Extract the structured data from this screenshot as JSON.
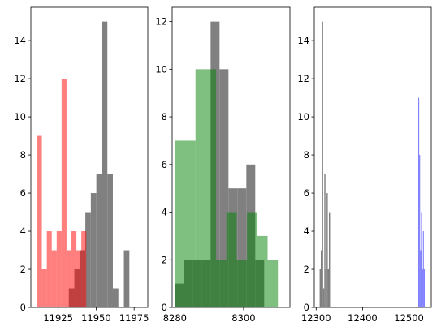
{
  "chart_data": [
    {
      "type": "histogram",
      "xlim": [
        11907,
        11984
      ],
      "ylim": [
        0,
        15.75
      ],
      "x_ticks": [
        11925,
        11950,
        11975
      ],
      "y_ticks": [
        0,
        2,
        4,
        6,
        8,
        10,
        12,
        14
      ],
      "series": [
        {
          "color": "#808080",
          "opacity": 1.0,
          "bins": [
            {
              "x0": 11932.0,
              "x1": 11935.63,
              "count": 1
            },
            {
              "x0": 11935.63,
              "x1": 11939.25,
              "count": 2
            },
            {
              "x0": 11939.25,
              "x1": 11942.88,
              "count": 3
            },
            {
              "x0": 11942.88,
              "x1": 11946.5,
              "count": 5
            },
            {
              "x0": 11946.5,
              "x1": 11950.13,
              "count": 6
            },
            {
              "x0": 11950.13,
              "x1": 11953.75,
              "count": 7
            },
            {
              "x0": 11953.75,
              "x1": 11957.38,
              "count": 15
            },
            {
              "x0": 11957.38,
              "x1": 11961.0,
              "count": 7
            },
            {
              "x0": 11961.0,
              "x1": 11964.63,
              "count": 1
            },
            {
              "x0": 11964.63,
              "x1": 11968.25,
              "count": 0
            },
            {
              "x0": 11968.25,
              "x1": 11971.88,
              "count": 3
            }
          ]
        },
        {
          "color": "#ff0000",
          "opacity": 0.5,
          "bins": [
            {
              "x0": 11911.0,
              "x1": 11914.25,
              "count": 9
            },
            {
              "x0": 11914.25,
              "x1": 11917.5,
              "count": 2
            },
            {
              "x0": 11917.5,
              "x1": 11920.75,
              "count": 4
            },
            {
              "x0": 11920.75,
              "x1": 11924.0,
              "count": 3
            },
            {
              "x0": 11924.0,
              "x1": 11927.25,
              "count": 4
            },
            {
              "x0": 11927.25,
              "x1": 11930.5,
              "count": 12
            },
            {
              "x0": 11930.5,
              "x1": 11933.75,
              "count": 3
            },
            {
              "x0": 11933.75,
              "x1": 11937.0,
              "count": 4
            },
            {
              "x0": 11937.0,
              "x1": 11940.25,
              "count": 3
            },
            {
              "x0": 11940.25,
              "x1": 11943.5,
              "count": 4
            }
          ]
        }
      ]
    },
    {
      "type": "histogram",
      "xlim": [
        8279.2,
        8313.5
      ],
      "ylim": [
        0,
        12.6
      ],
      "x_ticks": [
        8280,
        8300
      ],
      "y_ticks": [
        0,
        2,
        4,
        6,
        8,
        10,
        12
      ],
      "series": [
        {
          "color": "#808080",
          "opacity": 1.0,
          "bins": [
            {
              "x0": 8280.0,
              "x1": 8282.6,
              "count": 1
            },
            {
              "x0": 8282.6,
              "x1": 8285.2,
              "count": 2
            },
            {
              "x0": 8285.2,
              "x1": 8287.8,
              "count": 2
            },
            {
              "x0": 8287.8,
              "x1": 8290.4,
              "count": 2
            },
            {
              "x0": 8290.4,
              "x1": 8293.0,
              "count": 12
            },
            {
              "x0": 8293.0,
              "x1": 8295.6,
              "count": 10
            },
            {
              "x0": 8295.6,
              "x1": 8298.2,
              "count": 5
            },
            {
              "x0": 8298.2,
              "x1": 8300.8,
              "count": 5
            },
            {
              "x0": 8300.8,
              "x1": 8303.4,
              "count": 6
            },
            {
              "x0": 8303.4,
              "x1": 8306.0,
              "count": 2
            }
          ]
        },
        {
          "color": "#008000",
          "opacity": 0.5,
          "bins": [
            {
              "x0": 8280.0,
              "x1": 8283.0,
              "count": 7
            },
            {
              "x0": 8283.0,
              "x1": 8286.0,
              "count": 7
            },
            {
              "x0": 8286.0,
              "x1": 8289.0,
              "count": 10
            },
            {
              "x0": 8289.0,
              "x1": 8292.0,
              "count": 10
            },
            {
              "x0": 8292.0,
              "x1": 8295.0,
              "count": 2
            },
            {
              "x0": 8295.0,
              "x1": 8298.0,
              "count": 4
            },
            {
              "x0": 8298.0,
              "x1": 8301.0,
              "count": 2
            },
            {
              "x0": 8301.0,
              "x1": 8304.0,
              "count": 4
            },
            {
              "x0": 8304.0,
              "x1": 8307.0,
              "count": 3
            },
            {
              "x0": 8307.0,
              "x1": 8310.0,
              "count": 2
            }
          ]
        }
      ]
    },
    {
      "type": "histogram",
      "xlim": [
        12296,
        12548
      ],
      "ylim": [
        0,
        15.75
      ],
      "x_ticks": [
        12300,
        12400,
        12500
      ],
      "y_ticks": [
        0,
        2,
        4,
        6,
        8,
        10,
        12,
        14
      ],
      "series": [
        {
          "color": "#808080",
          "opacity": 1.0,
          "bins": [
            {
              "x0": 12307.5,
              "x1": 12310.0,
              "count": 2
            },
            {
              "x0": 12310.0,
              "x1": 12312.5,
              "count": 3
            },
            {
              "x0": 12312.5,
              "x1": 12315.0,
              "count": 15
            },
            {
              "x0": 12315.0,
              "x1": 12317.5,
              "count": 1
            },
            {
              "x0": 12317.5,
              "x1": 12320.0,
              "count": 7
            },
            {
              "x0": 12320.0,
              "x1": 12322.5,
              "count": 2
            },
            {
              "x0": 12322.5,
              "x1": 12325.0,
              "count": 6
            },
            {
              "x0": 12325.0,
              "x1": 12327.5,
              "count": 2
            },
            {
              "x0": 12327.5,
              "x1": 12330.0,
              "count": 5
            }
          ]
        },
        {
          "color": "#0000ff",
          "opacity": 0.5,
          "bins": [
            {
              "x0": 12520.0,
              "x1": 12522.0,
              "count": 11
            },
            {
              "x0": 12522.0,
              "x1": 12524.0,
              "count": 8
            },
            {
              "x0": 12524.0,
              "x1": 12526.0,
              "count": 3
            },
            {
              "x0": 12526.0,
              "x1": 12528.0,
              "count": 5
            },
            {
              "x0": 12528.0,
              "x1": 12530.0,
              "count": 2
            },
            {
              "x0": 12530.0,
              "x1": 12532.0,
              "count": 4
            },
            {
              "x0": 12532.0,
              "x1": 12534.0,
              "count": 2
            }
          ]
        }
      ]
    }
  ]
}
